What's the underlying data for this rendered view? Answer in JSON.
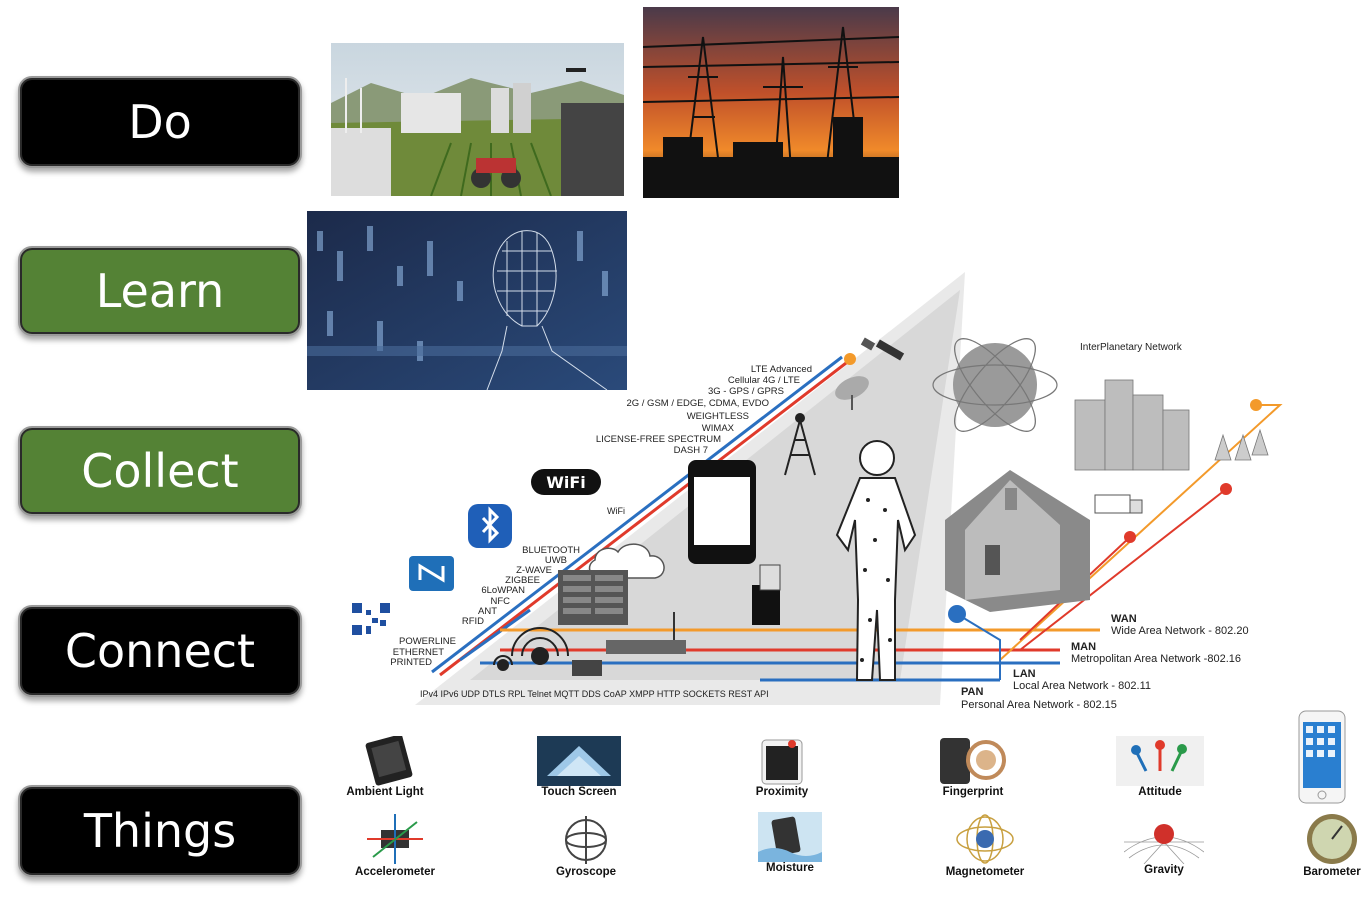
{
  "layers": [
    {
      "label": "Do",
      "color": "#000000"
    },
    {
      "label": "Learn",
      "color": "#548235"
    },
    {
      "label": "Collect",
      "color": "#548235"
    },
    {
      "label": "Connect",
      "color": "#000000"
    },
    {
      "label": "Things",
      "color": "#000000"
    }
  ],
  "cellular": [
    "LTE Advanced",
    "Cellular 4G / LTE",
    "3G - GPS / GPRS",
    "2G / GSM / EDGE, CDMA, EVDO",
    "WEIGHTLESS",
    "WIMAX",
    "LICENSE-FREE SPECTRUM",
    "DASH 7"
  ],
  "wifi_label": "WiFi",
  "wifi_logo": "WiFi",
  "short_range": [
    "BLUETOOTH",
    "UWB",
    "Z-WAVE",
    "ZIGBEE",
    "6LoWPAN",
    "NFC",
    "ANT",
    "RFID"
  ],
  "wired": [
    "POWERLINE",
    "ETHERNET",
    "PRINTED"
  ],
  "protocols": "IPv4 IPv6 UDP DTLS RPL Telnet MQTT DDS CoAP XMPP HTTP SOCKETS REST API",
  "interplanetary": "InterPlanetary Network",
  "networks": [
    {
      "abbr": "WAN",
      "desc": "Wide Area Network - 802.20"
    },
    {
      "abbr": "MAN",
      "desc": "Metropolitan Area Network -802.16"
    },
    {
      "abbr": "LAN",
      "desc": "Local Area Network - 802.11"
    },
    {
      "abbr": "PAN",
      "desc": "Personal Area Network - 802.15"
    }
  ],
  "sensors_top": [
    "Ambient Light",
    "Touch Screen",
    "Proximity",
    "Fingerprint",
    "Attitude"
  ],
  "sensors_bottom": [
    "Accelerometer",
    "Gyroscope",
    "Moisture",
    "Magnetometer",
    "Gravity",
    "Barometer"
  ],
  "colors": {
    "green": "#548235",
    "black": "#000000",
    "orange": "#f39a2b",
    "red": "#e03a2b",
    "blue": "#2a6fc0"
  }
}
